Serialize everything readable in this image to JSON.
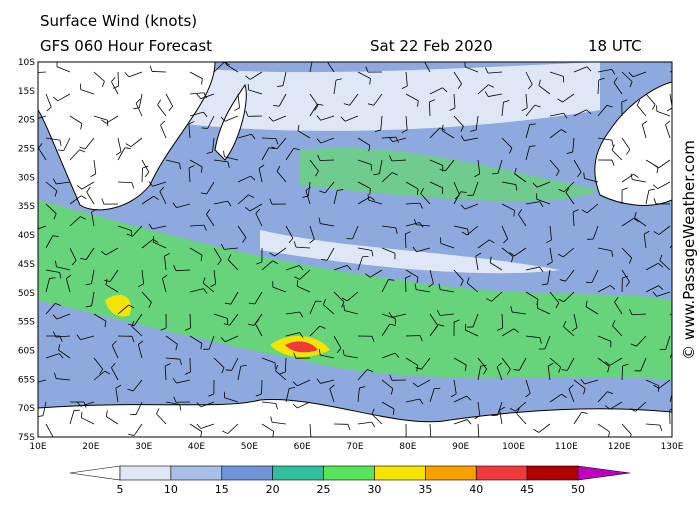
{
  "header": {
    "title": "Surface Wind (knots)",
    "model": "GFS 060 Hour Forecast",
    "date": "Sat 22 Feb 2020",
    "time": "18 UTC"
  },
  "credit": "© www.PassageWeather.com",
  "map": {
    "lat_labels": [
      "10S",
      "15S",
      "20S",
      "25S",
      "30S",
      "35S",
      "40S",
      "45S",
      "50S",
      "55S",
      "60S",
      "65S",
      "70S",
      "75S"
    ],
    "lon_labels": [
      "10E",
      "20E",
      "30E",
      "40E",
      "50E",
      "60E",
      "70E",
      "80E",
      "90E",
      "100E",
      "110E",
      "120E",
      "130E"
    ]
  },
  "colorbar": {
    "ticks": [
      5,
      10,
      15,
      20,
      25,
      30,
      35,
      40,
      45,
      50
    ],
    "colors": [
      "#ffffff",
      "#dfe7f6",
      "#a8bfe8",
      "#6f94d8",
      "#2fbf9c",
      "#5ae35a",
      "#f5e400",
      "#f7a200",
      "#ee3a3a",
      "#b00000",
      "#c000c0"
    ]
  }
}
